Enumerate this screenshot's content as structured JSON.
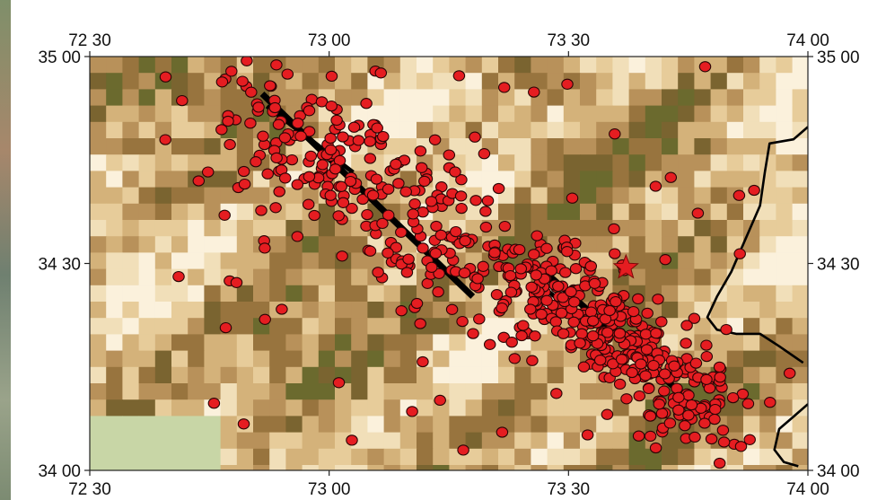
{
  "map": {
    "lon_range": [
      72.5,
      74.0
    ],
    "lat_range": [
      34.0,
      35.0
    ],
    "lon_ticks": [
      {
        "value": 72.5,
        "label": "72 30"
      },
      {
        "value": 73.0,
        "label": "73 00"
      },
      {
        "value": 73.5,
        "label": "73 30"
      },
      {
        "value": 74.0,
        "label": "74 00"
      }
    ],
    "lat_ticks": [
      {
        "value": 35.0,
        "label": "35 00"
      },
      {
        "value": 34.5,
        "label": "34 30"
      },
      {
        "value": 34.0,
        "label": "34 00"
      }
    ],
    "colors": {
      "terrain": [
        "#fbf1dc",
        "#f1dfb9",
        "#e7cc9a",
        "#d4b27a",
        "#b8915a",
        "#98743e",
        "#7a6430",
        "#6b6a2e"
      ],
      "lowland": "#c8d6a6",
      "event": "#e51d21",
      "event_outline": "#2a0505",
      "fault": "#000000",
      "boundary": "#000000"
    },
    "faults": [
      {
        "lon": [
          72.86,
          73.3
        ],
        "lat": [
          34.91,
          34.42
        ]
      },
      {
        "lon": [
          72.87,
          73.05
        ],
        "lat": [
          34.88,
          34.72
        ]
      },
      {
        "lon": [
          73.46,
          73.78
        ],
        "lat": [
          34.47,
          34.14
        ]
      },
      {
        "lon": [
          73.46,
          73.53
        ],
        "lat": [
          34.43,
          34.37
        ]
      }
    ],
    "boundary": [
      {
        "lon": 74.0,
        "lat": 34.83
      },
      {
        "lon": 73.97,
        "lat": 34.8
      },
      {
        "lon": 73.92,
        "lat": 34.79
      },
      {
        "lon": 73.91,
        "lat": 34.72
      },
      {
        "lon": 73.9,
        "lat": 34.64
      },
      {
        "lon": 73.87,
        "lat": 34.56
      },
      {
        "lon": 73.84,
        "lat": 34.48
      },
      {
        "lon": 73.81,
        "lat": 34.42
      },
      {
        "lon": 73.79,
        "lat": 34.37
      },
      {
        "lon": 73.81,
        "lat": 34.34
      },
      {
        "lon": 73.85,
        "lat": 34.33
      },
      {
        "lon": 73.9,
        "lat": 34.33
      },
      {
        "lon": 73.94,
        "lat": 34.3
      },
      {
        "lon": 73.99,
        "lat": 34.26
      }
    ],
    "boundary_lower": [
      {
        "lon": 74.0,
        "lat": 34.16
      },
      {
        "lon": 73.97,
        "lat": 34.13
      },
      {
        "lon": 73.94,
        "lat": 34.1
      },
      {
        "lon": 73.93,
        "lat": 34.05
      },
      {
        "lon": 73.95,
        "lat": 34.02
      },
      {
        "lon": 73.98,
        "lat": 34.01
      }
    ],
    "epicenter": {
      "lon": 73.62,
      "lat": 34.49
    }
  }
}
